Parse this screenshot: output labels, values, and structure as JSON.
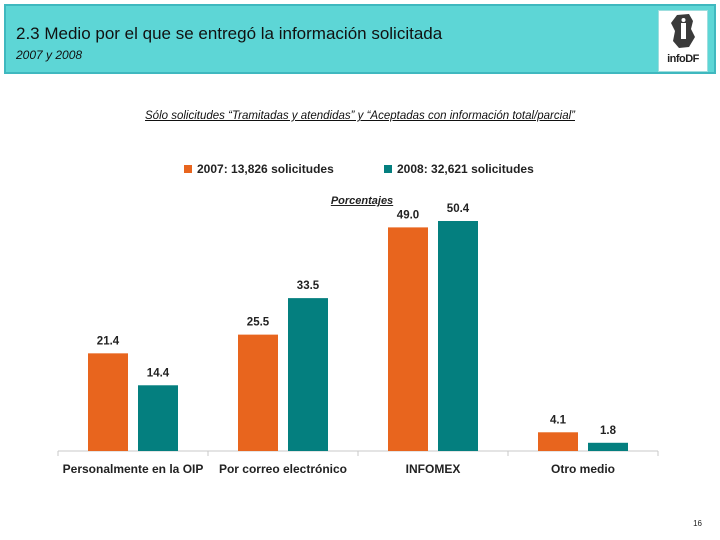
{
  "header": {
    "title": "2.3 Medio por el que se entregó la información solicitada",
    "subtitle": "2007 y 2008",
    "logo_text": "infoDF"
  },
  "note": "Sólo solicitudes “Tramitadas y atendidas” y “Aceptadas con información total/parcial”",
  "page_number": "16",
  "colors": {
    "header_bg": "#5dd6d6",
    "series_2007": "#e8651e",
    "series_2008": "#047f7f"
  },
  "chart_data": {
    "type": "bar",
    "title": "Porcentajes",
    "categories": [
      "Personalmente en la OIP",
      "Por correo electrónico",
      "INFOMEX",
      "Otro medio"
    ],
    "series": [
      {
        "name": "2007: 13,826 solicitudes",
        "color": "#e8651e",
        "values": [
          21.4,
          25.5,
          49.0,
          4.1
        ],
        "labels": [
          "21.4",
          "25.5",
          "49.0",
          "4.1"
        ]
      },
      {
        "name": "2008: 32,621 solicitudes",
        "color": "#047f7f",
        "values": [
          14.4,
          33.5,
          50.4,
          1.8
        ],
        "labels": [
          "14.4",
          "33.5",
          "50.4",
          "1.8"
        ]
      }
    ],
    "ylim": [
      0,
      55
    ],
    "legend": "top-center",
    "xlabel": "",
    "ylabel": ""
  }
}
